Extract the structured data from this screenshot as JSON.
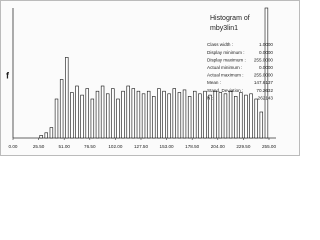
{
  "chart_data": {
    "type": "histogram",
    "y_label": "f",
    "bins": [
      25.5,
      30.6,
      35.7,
      40.8,
      45.9,
      51.0,
      56.1,
      61.2,
      66.3,
      71.4,
      76.5,
      81.6,
      86.7,
      91.8,
      96.9,
      102.0,
      107.1,
      112.2,
      117.3,
      122.4,
      127.5,
      132.6,
      137.7,
      142.8,
      147.9,
      153.0,
      158.1,
      163.2,
      168.3,
      173.4,
      178.5,
      183.6,
      188.7,
      193.8,
      198.9,
      204.0,
      209.1,
      214.2,
      219.3,
      224.4,
      229.5,
      234.6,
      239.7,
      244.8,
      249.9,
      255.0
    ],
    "values": [
      2,
      4,
      8,
      30,
      45,
      62,
      35,
      40,
      33,
      38,
      30,
      36,
      40,
      34,
      38,
      30,
      36,
      40,
      38,
      36,
      34,
      36,
      32,
      38,
      36,
      34,
      38,
      35,
      37,
      32,
      36,
      34,
      36,
      33,
      36,
      35,
      34,
      36,
      32,
      35,
      33,
      34,
      30,
      20,
      100
    ],
    "color": "#ffffff",
    "edge_color": "#111111",
    "xlim": [
      0,
      258
    ],
    "ylim": [
      0,
      100
    ],
    "xticks": [
      {
        "value": 0,
        "label": "0.00"
      },
      {
        "value": 25.5,
        "label": "25.50"
      },
      {
        "value": 51,
        "label": "51.00"
      },
      {
        "value": 76.5,
        "label": "76.50"
      },
      {
        "value": 102,
        "label": "102.00"
      },
      {
        "value": 127.5,
        "label": "127.50"
      },
      {
        "value": 153,
        "label": "153.00"
      },
      {
        "value": 178.5,
        "label": "178.50"
      },
      {
        "value": 204,
        "label": "204.00"
      },
      {
        "value": 229.5,
        "label": "229.50"
      },
      {
        "value": 255,
        "label": "255.00"
      }
    ],
    "info": {
      "title": "Histogram of",
      "name": "mby3lin1",
      "rows": [
        [
          "Class width :",
          "1.0000"
        ],
        [
          "Display minimum :",
          "0.0000"
        ],
        [
          "Display maximum :",
          "255.0000"
        ],
        [
          "Actual minimum :",
          "0.0000"
        ],
        [
          "Actual maximum :",
          "255.0000"
        ],
        [
          "Mean :",
          "147.6137"
        ],
        [
          "Stand. Deviation :",
          "70.2632"
        ],
        [
          "N :",
          "262143"
        ]
      ]
    }
  }
}
